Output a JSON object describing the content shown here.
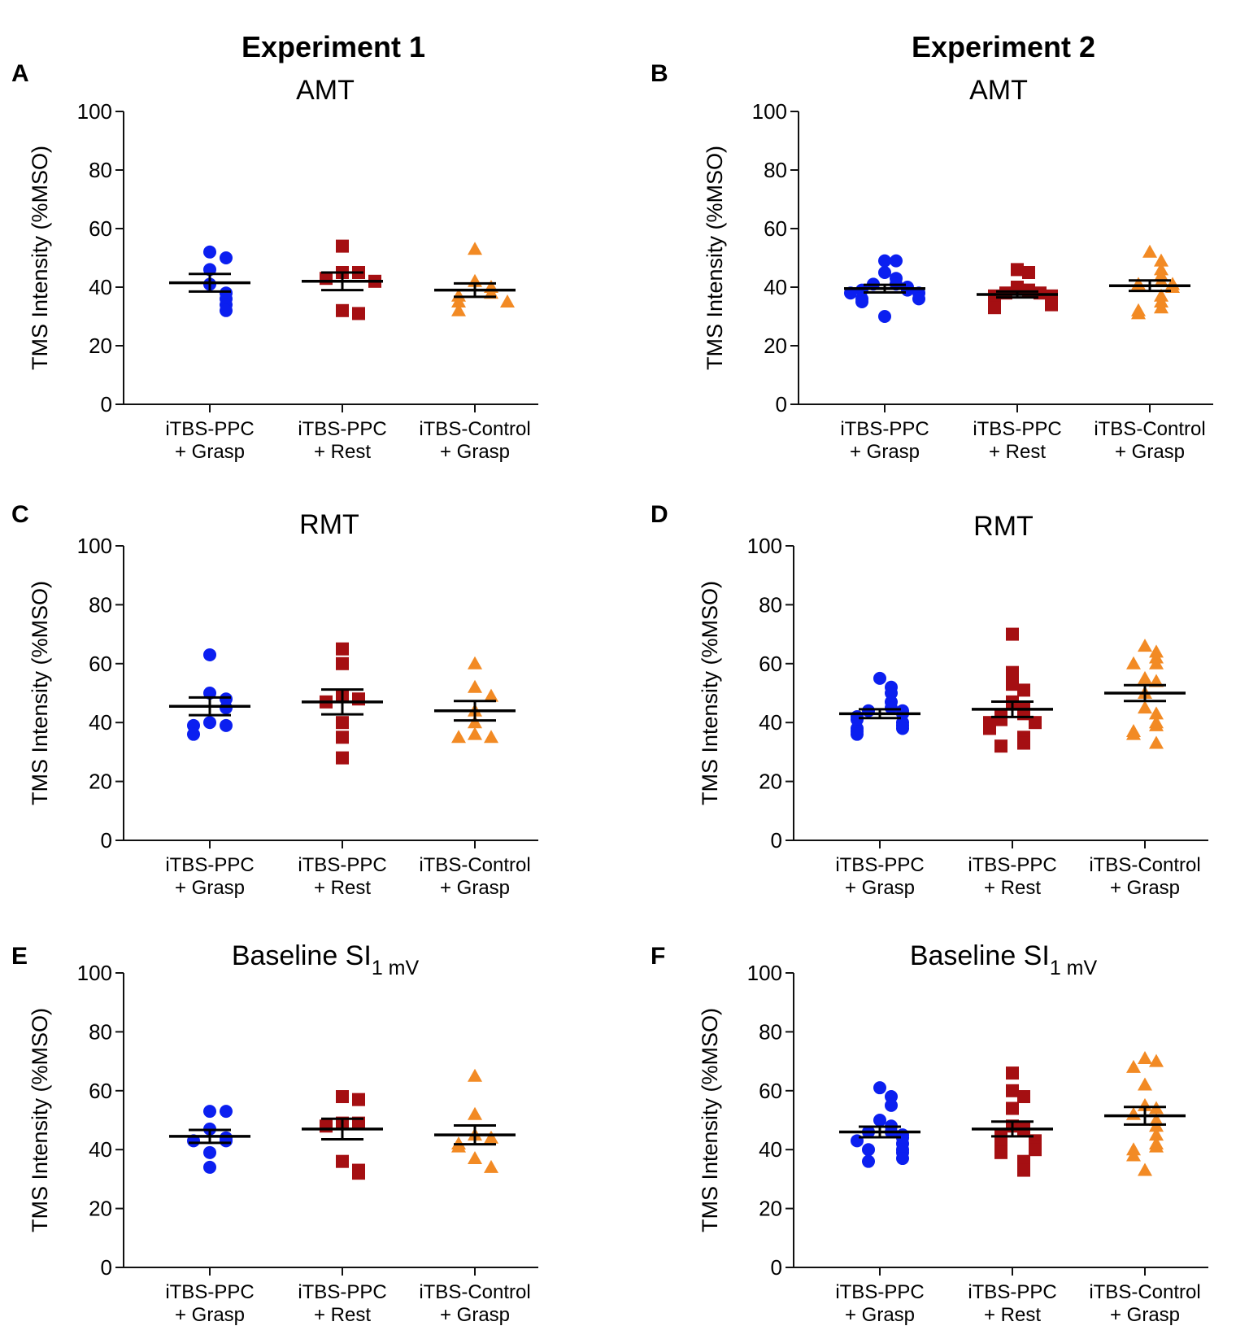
{
  "colors": {
    "blue": "#0b1ff0",
    "red": "#a50f12",
    "orange": "#f28a24",
    "axis": "#111111"
  },
  "columns": [
    {
      "title": "Experiment 1"
    },
    {
      "title": "Experiment 2"
    }
  ],
  "categories": [
    [
      "iTBS-PPC",
      "+ Grasp"
    ],
    [
      "iTBS-PPC",
      "+ Rest"
    ],
    [
      "iTBS-Control",
      "+ Grasp"
    ]
  ],
  "chart_data": [
    {
      "panel": "A",
      "type": "scatter",
      "title": "AMT",
      "ylabel": "TMS Intensity (%MSO)",
      "ylim": [
        0,
        100
      ],
      "yticks": [
        0,
        20,
        40,
        60,
        80,
        100
      ],
      "series": [
        {
          "name": "iTBS-PPC + Grasp",
          "marker": "circle",
          "color": "blue",
          "mean": 41.5,
          "sem": 3.0,
          "values": [
            52,
            50,
            46,
            41,
            38,
            36,
            34,
            32
          ]
        },
        {
          "name": "iTBS-PPC + Rest",
          "marker": "square",
          "color": "red",
          "mean": 42,
          "sem": 3.0,
          "values": [
            54,
            45,
            45,
            43,
            42,
            32,
            31
          ]
        },
        {
          "name": "iTBS-Control + Grasp",
          "marker": "triangle",
          "color": "orange",
          "mean": 39,
          "sem": 2.3,
          "values": [
            53,
            42,
            40,
            38,
            37,
            35,
            35,
            32
          ]
        }
      ]
    },
    {
      "panel": "B",
      "type": "scatter",
      "title": "AMT",
      "ylabel": "TMS Intensity (%MSO)",
      "ylim": [
        0,
        100
      ],
      "yticks": [
        0,
        20,
        40,
        60,
        80,
        100
      ],
      "series": [
        {
          "name": "iTBS-PPC + Grasp",
          "marker": "circle",
          "color": "blue",
          "mean": 39.5,
          "sem": 1.3,
          "values": [
            49,
            49,
            45,
            43,
            41,
            41,
            40,
            39,
            39,
            38,
            38,
            36,
            36,
            35,
            30
          ]
        },
        {
          "name": "iTBS-PPC + Rest",
          "marker": "square",
          "color": "red",
          "mean": 37.5,
          "sem": 1.0,
          "values": [
            46,
            45,
            40,
            39,
            38,
            38,
            37,
            37,
            36,
            35,
            34,
            34,
            33
          ]
        },
        {
          "name": "iTBS-Control + Grasp",
          "marker": "triangle",
          "color": "orange",
          "mean": 40.5,
          "sem": 1.8,
          "values": [
            52,
            49,
            46,
            44,
            42,
            41,
            41,
            40,
            37,
            35,
            33,
            32,
            31
          ]
        }
      ]
    },
    {
      "panel": "C",
      "type": "scatter",
      "title": "RMT",
      "ylabel": "TMS Intensity (%MSO)",
      "ylim": [
        0,
        100
      ],
      "yticks": [
        0,
        20,
        40,
        60,
        80,
        100
      ],
      "series": [
        {
          "name": "iTBS-PPC + Grasp",
          "marker": "circle",
          "color": "blue",
          "mean": 45.5,
          "sem": 3.0,
          "values": [
            63,
            50,
            48,
            45,
            40,
            39,
            39,
            36
          ]
        },
        {
          "name": "iTBS-PPC + Rest",
          "marker": "square",
          "color": "red",
          "mean": 47,
          "sem": 4.2,
          "values": [
            65,
            60,
            49,
            48,
            47,
            40,
            35,
            28
          ]
        },
        {
          "name": "iTBS-Control + Grasp",
          "marker": "triangle",
          "color": "orange",
          "mean": 44,
          "sem": 3.3,
          "values": [
            60,
            52,
            49,
            44,
            40,
            36,
            35,
            35
          ]
        }
      ]
    },
    {
      "panel": "D",
      "type": "scatter",
      "title": "RMT",
      "ylabel": "TMS Intensity (%MSO)",
      "ylim": [
        0,
        100
      ],
      "yticks": [
        0,
        20,
        40,
        60,
        80,
        100
      ],
      "series": [
        {
          "name": "iTBS-PPC + Grasp",
          "marker": "circle",
          "color": "blue",
          "mean": 43,
          "sem": 1.5,
          "values": [
            55,
            52,
            50,
            47,
            45,
            44,
            44,
            43,
            42,
            41,
            40,
            39,
            38,
            38,
            37,
            36
          ]
        },
        {
          "name": "iTBS-PPC + Rest",
          "marker": "square",
          "color": "red",
          "mean": 44.5,
          "sem": 2.6,
          "values": [
            70,
            57,
            53,
            51,
            47,
            45,
            43,
            42,
            41,
            40,
            40,
            39,
            38,
            35,
            33,
            32
          ]
        },
        {
          "name": "iTBS-Control + Grasp",
          "marker": "triangle",
          "color": "orange",
          "mean": 50,
          "sem": 2.7,
          "values": [
            66,
            64,
            62,
            60,
            60,
            55,
            54,
            50,
            45,
            43,
            40,
            39,
            37,
            36,
            33
          ]
        }
      ]
    },
    {
      "panel": "E",
      "type": "scatter",
      "title": "Baseline SI",
      "title_subscript": "1 mV",
      "ylabel": "TMS Intensity (%MSO)",
      "ylim": [
        0,
        100
      ],
      "yticks": [
        0,
        20,
        40,
        60,
        80,
        100
      ],
      "series": [
        {
          "name": "iTBS-PPC + Grasp",
          "marker": "circle",
          "color": "blue",
          "mean": 44.5,
          "sem": 2.2,
          "values": [
            53,
            53,
            47,
            44,
            43,
            43,
            39,
            34
          ]
        },
        {
          "name": "iTBS-PPC + Rest",
          "marker": "square",
          "color": "red",
          "mean": 47,
          "sem": 3.5,
          "values": [
            58,
            57,
            49,
            49,
            48,
            36,
            33,
            32
          ]
        },
        {
          "name": "iTBS-Control + Grasp",
          "marker": "triangle",
          "color": "orange",
          "mean": 45,
          "sem": 3.2,
          "values": [
            65,
            52,
            45,
            44,
            42,
            41,
            37,
            34
          ]
        }
      ]
    },
    {
      "panel": "F",
      "type": "scatter",
      "title": "Baseline SI",
      "title_subscript": "1 mV",
      "ylabel": "TMS Intensity (%MSO)",
      "ylim": [
        0,
        100
      ],
      "yticks": [
        0,
        20,
        40,
        60,
        80,
        100
      ],
      "series": [
        {
          "name": "iTBS-PPC + Grasp",
          "marker": "circle",
          "color": "blue",
          "mean": 46,
          "sem": 1.8,
          "values": [
            61,
            58,
            55,
            50,
            48,
            46,
            46,
            45,
            44,
            43,
            42,
            40,
            40,
            39,
            37,
            36
          ]
        },
        {
          "name": "iTBS-PPC + Rest",
          "marker": "square",
          "color": "red",
          "mean": 47,
          "sem": 2.5,
          "values": [
            66,
            60,
            58,
            54,
            48,
            47,
            45,
            44,
            43,
            43,
            41,
            40,
            39,
            36,
            33
          ]
        },
        {
          "name": "iTBS-Control + Grasp",
          "marker": "triangle",
          "color": "orange",
          "mean": 51.5,
          "sem": 3.0,
          "values": [
            71,
            70,
            68,
            62,
            55,
            54,
            52,
            50,
            48,
            45,
            42,
            41,
            40,
            38,
            33
          ]
        }
      ]
    }
  ]
}
